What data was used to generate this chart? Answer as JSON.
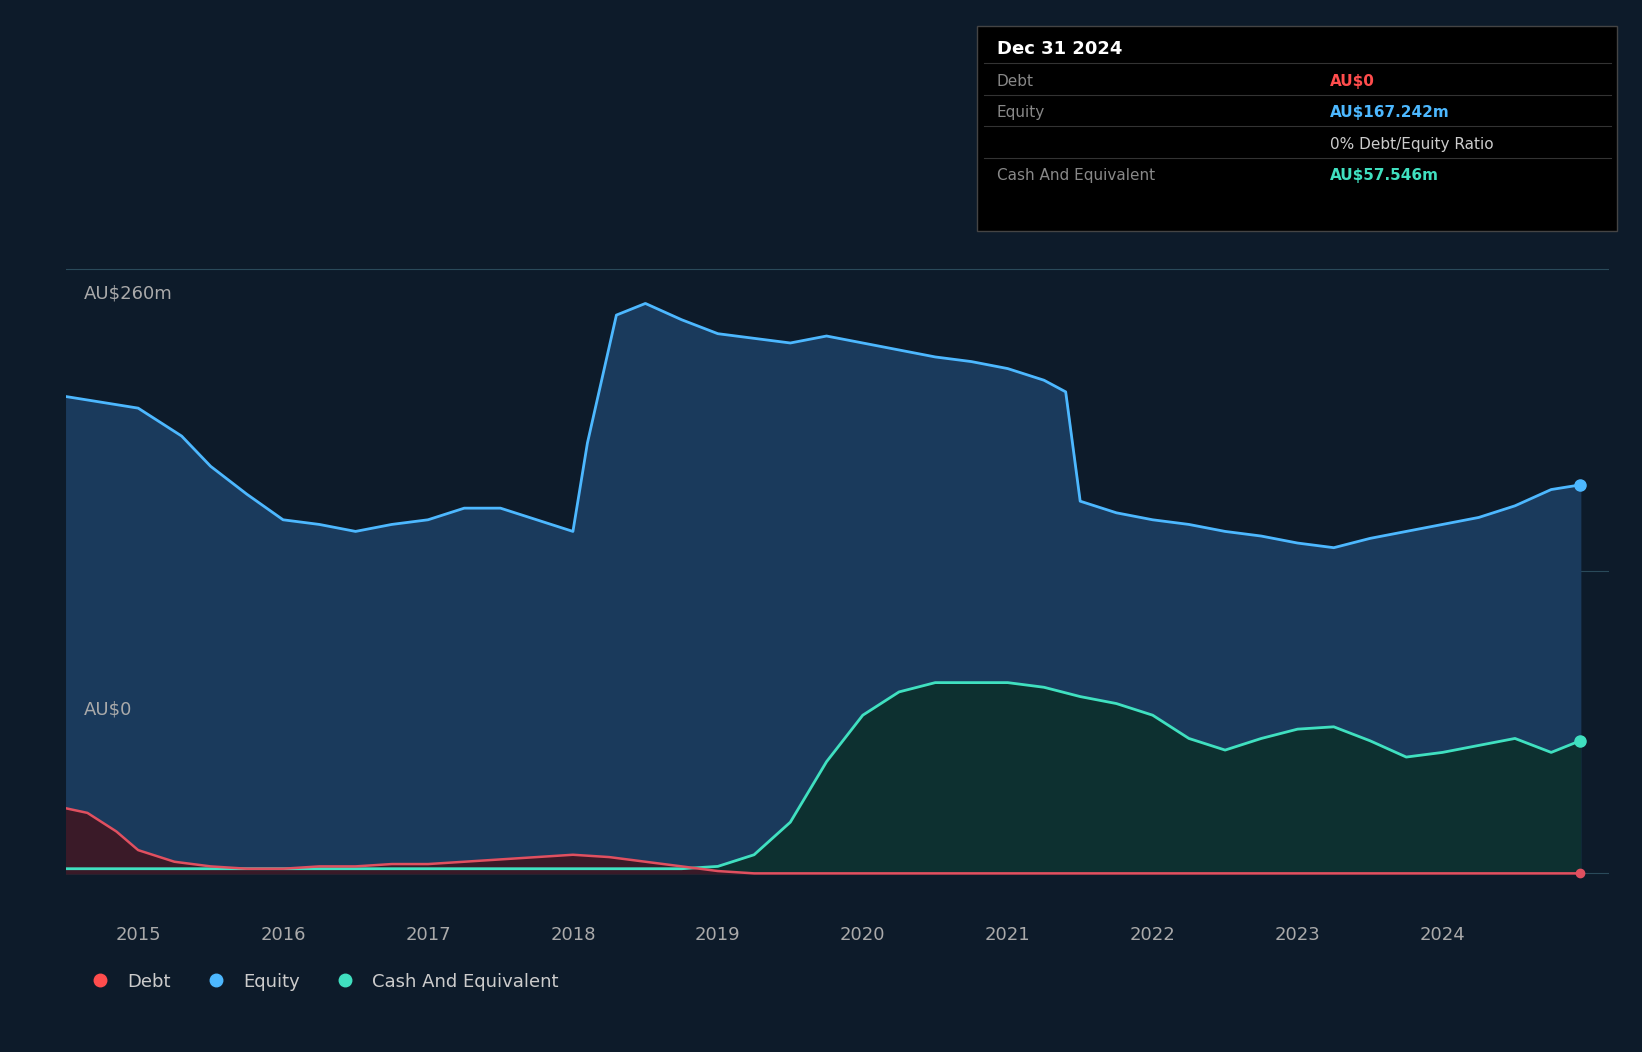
{
  "background_color": "#0d1b2a",
  "plot_bg_color": "#0d1b2a",
  "title_text": "Dec 31 2024",
  "tooltip_items": [
    {
      "label": "Debt",
      "value": "AU$0",
      "value_color": "#ff4d4d"
    },
    {
      "label": "Equity",
      "value": "AU$167.242m",
      "value_color": "#4db8ff"
    },
    {
      "label": "",
      "value": "0% Debt/Equity Ratio",
      "value_color": "#cccccc"
    },
    {
      "label": "Cash And Equivalent",
      "value": "AU$57.546m",
      "value_color": "#40e0c0"
    }
  ],
  "ylabel_top": "AU$260m",
  "ylabel_bottom": "AU$0",
  "x_ticks": [
    "2015",
    "2016",
    "2017",
    "2018",
    "2019",
    "2020",
    "2021",
    "2022",
    "2023",
    "2024"
  ],
  "legend": [
    {
      "label": "Debt",
      "color": "#ff4d4d"
    },
    {
      "label": "Equity",
      "color": "#4db8ff"
    },
    {
      "label": "Cash And Equivalent",
      "color": "#40e0c0"
    }
  ],
  "equity_color": "#4db8ff",
  "equity_fill_color": "#1a3a5c",
  "debt_color": "#e05060",
  "debt_fill_color": "#3a1a28",
  "cash_color": "#40e0c0",
  "cash_fill_color": "#0d3030",
  "equity_data": {
    "x": [
      2014.5,
      2014.7,
      2015.0,
      2015.3,
      2015.5,
      2015.75,
      2016.0,
      2016.25,
      2016.5,
      2016.75,
      2017.0,
      2017.25,
      2017.5,
      2017.75,
      2018.0,
      2018.1,
      2018.3,
      2018.5,
      2018.75,
      2019.0,
      2019.25,
      2019.5,
      2019.75,
      2020.0,
      2020.25,
      2020.5,
      2020.75,
      2021.0,
      2021.25,
      2021.4,
      2021.5,
      2021.75,
      2022.0,
      2022.25,
      2022.5,
      2022.75,
      2023.0,
      2023.25,
      2023.5,
      2023.75,
      2024.0,
      2024.25,
      2024.5,
      2024.75,
      2024.95
    ],
    "y": [
      205,
      203,
      200,
      188,
      175,
      163,
      152,
      150,
      147,
      150,
      152,
      157,
      157,
      152,
      147,
      185,
      240,
      245,
      238,
      232,
      230,
      228,
      231,
      228,
      225,
      222,
      220,
      217,
      212,
      207,
      160,
      155,
      152,
      150,
      147,
      145,
      142,
      140,
      144,
      147,
      150,
      153,
      158,
      165,
      167
    ]
  },
  "debt_data": {
    "x": [
      2014.5,
      2014.65,
      2014.85,
      2015.0,
      2015.25,
      2015.5,
      2015.75,
      2016.0,
      2016.25,
      2016.5,
      2016.75,
      2017.0,
      2017.25,
      2017.5,
      2017.75,
      2018.0,
      2018.25,
      2018.5,
      2018.75,
      2019.0,
      2019.25,
      2019.5,
      2019.75,
      2020.0,
      2021.0,
      2022.0,
      2023.0,
      2024.0,
      2024.75,
      2024.95
    ],
    "y": [
      28,
      26,
      18,
      10,
      5,
      3,
      2,
      2,
      3,
      3,
      4,
      4,
      5,
      6,
      7,
      8,
      7,
      5,
      3,
      1,
      0,
      0,
      0,
      0,
      0,
      0,
      0,
      0,
      0,
      0
    ]
  },
  "cash_data": {
    "x": [
      2014.5,
      2015.0,
      2015.5,
      2016.0,
      2016.5,
      2017.0,
      2017.5,
      2018.0,
      2018.5,
      2018.75,
      2019.0,
      2019.25,
      2019.5,
      2019.75,
      2020.0,
      2020.25,
      2020.5,
      2020.75,
      2021.0,
      2021.25,
      2021.5,
      2021.75,
      2022.0,
      2022.25,
      2022.5,
      2022.75,
      2023.0,
      2023.25,
      2023.5,
      2023.75,
      2024.0,
      2024.25,
      2024.5,
      2024.75,
      2024.95
    ],
    "y": [
      2,
      2,
      2,
      2,
      2,
      2,
      2,
      2,
      2,
      2,
      3,
      8,
      22,
      48,
      68,
      78,
      82,
      82,
      82,
      80,
      76,
      73,
      68,
      58,
      53,
      58,
      62,
      63,
      57,
      50,
      52,
      55,
      58,
      52,
      57
    ]
  }
}
